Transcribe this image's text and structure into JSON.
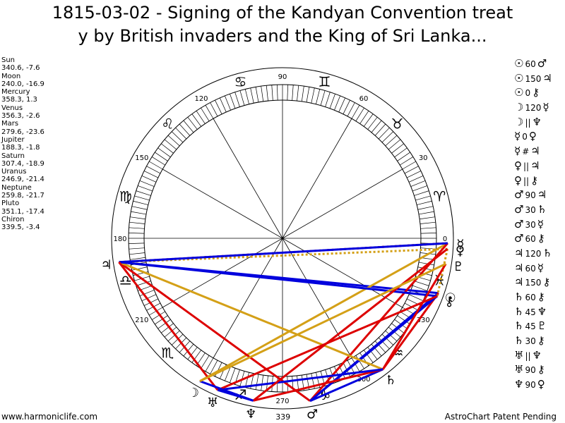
{
  "title_lines": [
    "1815-03-02 - Signing of the Kandyan Convention treat",
    "y by British invaders and the King of Sri Lanka..."
  ],
  "planets": [
    {
      "name": "Sun",
      "coords": "340.6, -7.6"
    },
    {
      "name": "Moon",
      "coords": "240.0, -16.9"
    },
    {
      "name": "Mercury",
      "coords": "358.3, 1.3"
    },
    {
      "name": "Venus",
      "coords": "356.3, -2.6"
    },
    {
      "name": "Mars",
      "coords": "279.6, -23.6"
    },
    {
      "name": "Jupiter",
      "coords": "188.3, -1.8"
    },
    {
      "name": "Saturn",
      "coords": "307.4, -18.9"
    },
    {
      "name": "Uranus",
      "coords": "246.9, -21.4"
    },
    {
      "name": "Neptune",
      "coords": "259.8, -21.7"
    },
    {
      "name": "Pluto",
      "coords": "351.1, -17.4"
    },
    {
      "name": "Chiron",
      "coords": "339.5, -3.4"
    }
  ],
  "aspects": [
    {
      "p1": "☉",
      "angle": "60",
      "p2": "♂"
    },
    {
      "p1": "☉",
      "angle": "150",
      "p2": "♃"
    },
    {
      "p1": "☉",
      "angle": "0",
      "p2": "⚷"
    },
    {
      "p1": "☽",
      "angle": "120",
      "p2": "☿"
    },
    {
      "p1": "☽",
      "angle": "||",
      "p2": "♆"
    },
    {
      "p1": "☿",
      "angle": "0",
      "p2": "♀"
    },
    {
      "p1": "☿",
      "angle": "#",
      "p2": "♃"
    },
    {
      "p1": "♀",
      "angle": "||",
      "p2": "♃"
    },
    {
      "p1": "♀",
      "angle": "||",
      "p2": "⚷"
    },
    {
      "p1": "♂",
      "angle": "90",
      "p2": "♃"
    },
    {
      "p1": "♂",
      "angle": "30",
      "p2": "♄"
    },
    {
      "p1": "♂",
      "angle": "30",
      "p2": "☿"
    },
    {
      "p1": "♂",
      "angle": "60",
      "p2": "⚷"
    },
    {
      "p1": "♃",
      "angle": "120",
      "p2": "♄"
    },
    {
      "p1": "♃",
      "angle": "60",
      "p2": "☿"
    },
    {
      "p1": "♃",
      "angle": "150",
      "p2": "⚷"
    },
    {
      "p1": "♄",
      "angle": "60",
      "p2": "⚷"
    },
    {
      "p1": "♄",
      "angle": "45",
      "p2": "♆"
    },
    {
      "p1": "♄",
      "angle": "45",
      "p2": "♇"
    },
    {
      "p1": "♄",
      "angle": "30",
      "p2": "⚷"
    },
    {
      "p1": "♅",
      "angle": "||",
      "p2": "♆"
    },
    {
      "p1": "♅",
      "angle": "90",
      "p2": "⚷"
    },
    {
      "p1": "♆",
      "angle": "90",
      "p2": "♀"
    }
  ],
  "footer": {
    "left": "www.harmoniclife.com",
    "right": "AstroChart Patent Pending"
  },
  "chart_data": {
    "type": "astrological-wheel",
    "degree_labels": [
      {
        "deg": 0,
        "text": "0"
      },
      {
        "deg": 30,
        "text": "30"
      },
      {
        "deg": 60,
        "text": "60"
      },
      {
        "deg": 90,
        "text": "90"
      },
      {
        "deg": 120,
        "text": "120"
      },
      {
        "deg": 150,
        "text": "150"
      },
      {
        "deg": 180,
        "text": "180"
      },
      {
        "deg": 210,
        "text": "210"
      },
      {
        "deg": 270,
        "text": "270"
      },
      {
        "deg": 300,
        "text": "300"
      },
      {
        "deg": 330,
        "text": "330"
      }
    ],
    "zodiac_signs": [
      {
        "deg": 15,
        "glyph": "♈"
      },
      {
        "deg": 45,
        "glyph": "♉"
      },
      {
        "deg": 75,
        "glyph": "♊"
      },
      {
        "deg": 105,
        "glyph": "♋"
      },
      {
        "deg": 135,
        "glyph": "♌"
      },
      {
        "deg": 165,
        "glyph": "♍"
      },
      {
        "deg": 195,
        "glyph": "♎"
      },
      {
        "deg": 225,
        "glyph": "♏"
      },
      {
        "deg": 255,
        "glyph": "♐"
      },
      {
        "deg": 285,
        "glyph": "♑"
      },
      {
        "deg": 315,
        "glyph": "♒"
      },
      {
        "deg": 345,
        "glyph": "♓"
      }
    ],
    "bodies": [
      {
        "name": "Sun",
        "glyph": "☉",
        "lon": 340.6
      },
      {
        "name": "Moon",
        "glyph": "☽",
        "lon": 240.0
      },
      {
        "name": "Mercury",
        "glyph": "☿",
        "lon": 358.3
      },
      {
        "name": "Venus",
        "glyph": "♀",
        "lon": 356.3
      },
      {
        "name": "Mars",
        "glyph": "♂",
        "lon": 279.6
      },
      {
        "name": "Jupiter",
        "glyph": "♃",
        "lon": 188.3
      },
      {
        "name": "Saturn",
        "glyph": "♄",
        "lon": 307.4
      },
      {
        "name": "Uranus",
        "glyph": "♅",
        "lon": 246.9
      },
      {
        "name": "Neptune",
        "glyph": "♆",
        "lon": 259.8
      },
      {
        "name": "Pluto",
        "glyph": "♇",
        "lon": 351.1
      },
      {
        "name": "Chiron",
        "glyph": "⚷",
        "lon": 339.5
      }
    ],
    "aspect_lines": [
      {
        "a": "Sun",
        "b": "Mars",
        "color": "#0000dd",
        "style": "solid"
      },
      {
        "a": "Sun",
        "b": "Jupiter",
        "color": "#0000dd",
        "style": "solid"
      },
      {
        "a": "Sun",
        "b": "Saturn",
        "color": "#dd0000",
        "style": "solid"
      },
      {
        "a": "Moon",
        "b": "Mercury",
        "color": "#d4a017",
        "style": "solid"
      },
      {
        "a": "Mercury",
        "b": "Jupiter",
        "color": "#dd0000",
        "style": "dotted"
      },
      {
        "a": "Venus",
        "b": "Jupiter",
        "color": "#d4a017",
        "style": "dotted"
      },
      {
        "a": "Venus",
        "b": "Chiron",
        "color": "#d4a017",
        "style": "dotted"
      },
      {
        "a": "Mars",
        "b": "Jupiter",
        "color": "#dd0000",
        "style": "solid"
      },
      {
        "a": "Mars",
        "b": "Saturn",
        "color": "#0000dd",
        "style": "solid"
      },
      {
        "a": "Mars",
        "b": "Mercury",
        "color": "#dd0000",
        "style": "solid"
      },
      {
        "a": "Mars",
        "b": "Chiron",
        "color": "#0000dd",
        "style": "solid"
      },
      {
        "a": "Jupiter",
        "b": "Saturn",
        "color": "#d4a017",
        "style": "solid"
      },
      {
        "a": "Jupiter",
        "b": "Mercury",
        "color": "#0000dd",
        "style": "solid"
      },
      {
        "a": "Jupiter",
        "b": "Chiron",
        "color": "#0000dd",
        "style": "solid"
      },
      {
        "a": "Jupiter",
        "b": "Uranus",
        "color": "#dd0000",
        "style": "solid"
      },
      {
        "a": "Saturn",
        "b": "Neptune",
        "color": "#dd0000",
        "style": "solid"
      },
      {
        "a": "Saturn",
        "b": "Pluto",
        "color": "#dd0000",
        "style": "solid"
      },
      {
        "a": "Saturn",
        "b": "Uranus",
        "color": "#0000dd",
        "style": "solid"
      },
      {
        "a": "Uranus",
        "b": "Chiron",
        "color": "#dd0000",
        "style": "solid"
      },
      {
        "a": "Neptune",
        "b": "Venus",
        "color": "#dd0000",
        "style": "solid"
      },
      {
        "a": "Moon",
        "b": "Neptune",
        "color": "#0000dd",
        "style": "solid"
      },
      {
        "a": "Moon",
        "b": "Pluto",
        "color": "#d4a017",
        "style": "solid"
      },
      {
        "a": "Uranus",
        "b": "Neptune",
        "color": "#0000dd",
        "style": "solid"
      }
    ],
    "labels": {
      "mars_degree": "339"
    }
  }
}
